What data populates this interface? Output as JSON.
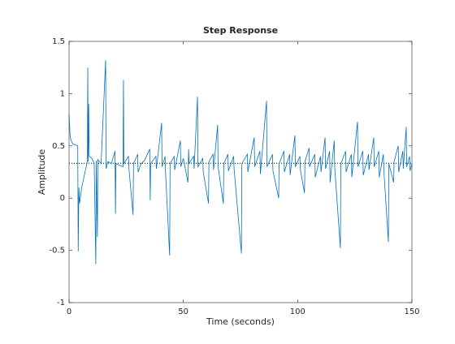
{
  "chart_data": {
    "type": "line",
    "title": "Step Response",
    "xlabel": "Time (seconds)",
    "ylabel": "Amplitude",
    "xlim": [
      0,
      150
    ],
    "ylim": [
      -1,
      1.5
    ],
    "xticks": [
      0,
      50,
      100,
      150
    ],
    "yticks": [
      -1,
      -0.5,
      0,
      0.5,
      1,
      1.5
    ],
    "reference_line": 0.333,
    "reference_color": "#000000",
    "series": [
      {
        "color": "#0072bd",
        "x": [
          0,
          0.5,
          1.5,
          3.8,
          4.0,
          4.3,
          4.6,
          5.5,
          6.5,
          7.5,
          8.0,
          8.2,
          8.35,
          8.6,
          8.8,
          10,
          11,
          11.7,
          11.9,
          12.4,
          12.6,
          14,
          16,
          16.2,
          17,
          18.5,
          20.1,
          20.3,
          20.5,
          23.6,
          23.8,
          24.0,
          26,
          26.2,
          28,
          28.2,
          30,
          30.2,
          31.5,
          33,
          35.3,
          35.5,
          35.7,
          38,
          38.2,
          40.5,
          40.7,
          42,
          42.2,
          44,
          44.2,
          46,
          46.2,
          48.7,
          48.9,
          50,
          52,
          52.3,
          52.5,
          54.5,
          54.7,
          56.2,
          56.4,
          58.5,
          58.7,
          61,
          61.2,
          63,
          63.2,
          65,
          65.2,
          67.5,
          67.7,
          69.5,
          69.7,
          72,
          72.2,
          75.4,
          75.6,
          78,
          78.2,
          81,
          81.2,
          83.5,
          83.7,
          86.4,
          86.6,
          89,
          89.2,
          91.7,
          91.9,
          94,
          94.2,
          96.5,
          96.7,
          98.8,
          99,
          101,
          101.2,
          103,
          103.2,
          105,
          105.2,
          107.5,
          107.7,
          110,
          110.2,
          112,
          112.2,
          114,
          114.2,
          116,
          116.2,
          118.7,
          118.9,
          121,
          121.2,
          123.5,
          123.7,
          126.2,
          126.4,
          128.5,
          128.7,
          131,
          131.2,
          133.3,
          133.5,
          135.5,
          135.7,
          137.5,
          137.7,
          139.7,
          139.9,
          142,
          142.2,
          144,
          144.2,
          146,
          146.2,
          147.5,
          147.7,
          149,
          149.2,
          150
        ],
        "values": [
          0.8,
          0.58,
          0.52,
          0.5,
          -0.51,
          0.1,
          -0.05,
          0.1,
          0.2,
          0.3,
          0.35,
          1.25,
          0.35,
          0.9,
          0.4,
          0.38,
          0.33,
          -0.63,
          0.36,
          -0.37,
          0.37,
          0.33,
          1.32,
          0.28,
          0.35,
          0.33,
          0.45,
          -0.15,
          0.33,
          0.3,
          1.13,
          0.33,
          0.4,
          0.28,
          -0.16,
          0.33,
          0.42,
          0.25,
          0.33,
          0.36,
          0.47,
          -0.02,
          0.33,
          0.4,
          0.28,
          0.72,
          0.3,
          0.4,
          0.25,
          -0.55,
          0.33,
          0.4,
          0.27,
          0.55,
          0.3,
          0.38,
          0.15,
          0.47,
          0.33,
          0.4,
          0.28,
          0.97,
          0.3,
          0.38,
          0.25,
          -0.05,
          0.35,
          0.42,
          0.27,
          0.7,
          0.3,
          -0.05,
          0.33,
          0.42,
          0.26,
          0.4,
          0.28,
          -0.53,
          0.33,
          0.42,
          0.25,
          0.58,
          0.3,
          0.45,
          0.23,
          0.93,
          0.3,
          0.42,
          0.26,
          0.0,
          0.33,
          0.45,
          0.25,
          0.42,
          0.22,
          0.6,
          0.3,
          0.4,
          0.27,
          0.05,
          0.35,
          0.48,
          0.3,
          0.42,
          0.2,
          0.4,
          0.25,
          0.58,
          0.28,
          0.45,
          0.15,
          0.55,
          0.3,
          -0.48,
          0.33,
          0.45,
          0.25,
          0.42,
          0.2,
          0.73,
          0.3,
          0.45,
          0.22,
          0.42,
          0.27,
          0.58,
          0.3,
          0.45,
          0.2,
          0.42,
          0.27,
          -0.42,
          0.33,
          0.15,
          0.35,
          0.5,
          0.25,
          0.45,
          0.28,
          0.68,
          0.3,
          0.4,
          0.26,
          0.33
        ]
      }
    ]
  }
}
